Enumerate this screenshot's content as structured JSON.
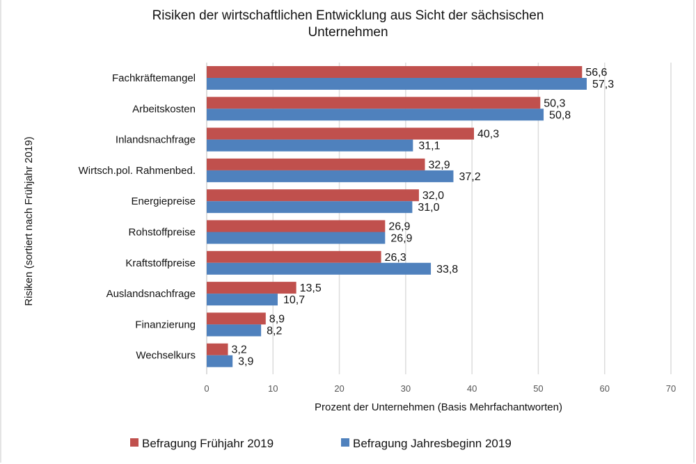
{
  "chart_data": {
    "type": "bar",
    "orientation": "horizontal",
    "title_lines": [
      "Risiken der wirtschaftlichen Entwicklung  aus Sicht der sächsischen",
      "Unternehmen"
    ],
    "title": "Risiken der wirtschaftlichen Entwicklung aus Sicht der sächsischen Unternehmen",
    "xlabel": "Prozent der Unternehmen (Basis Mehrfachantworten)",
    "ylabel": "Risiken (sortiert nach Frühjahr 2019)",
    "xlim": [
      0,
      70
    ],
    "xticks": [
      0,
      10,
      20,
      30,
      40,
      50,
      60,
      70
    ],
    "grid": "vertical",
    "legend_position": "bottom",
    "categories": [
      "Fachkräftemangel",
      "Arbeitskosten",
      "Inlandsnachfrage",
      "Wirtsch.pol. Rahmenbed.",
      "Energiepreise",
      "Rohstoffpreise",
      "Kraftstoffpreise",
      "Auslandsnachfrage",
      "Finanzierung",
      "Wechselkurs"
    ],
    "series": [
      {
        "name": "Befragung Frühjahr 2019",
        "color": "#c0504d",
        "values": [
          56.6,
          50.3,
          40.3,
          32.9,
          32.0,
          26.9,
          26.3,
          13.5,
          8.9,
          3.2
        ],
        "labels": [
          "56,6",
          "50,3",
          "40,3",
          "32,9",
          "32,0",
          "26,9",
          "26,3",
          "13,5",
          "8,9",
          "3,2"
        ]
      },
      {
        "name": "Befragung Jahresbeginn 2019",
        "color": "#4f81bd",
        "values": [
          57.3,
          50.8,
          31.1,
          37.2,
          31.0,
          26.9,
          33.8,
          10.7,
          8.2,
          3.9
        ],
        "labels": [
          "57,3",
          "50,8",
          "31,1",
          "37,2",
          "31,0",
          "26,9",
          "33,8",
          "10,7",
          "8,2",
          "3,9"
        ]
      }
    ]
  }
}
